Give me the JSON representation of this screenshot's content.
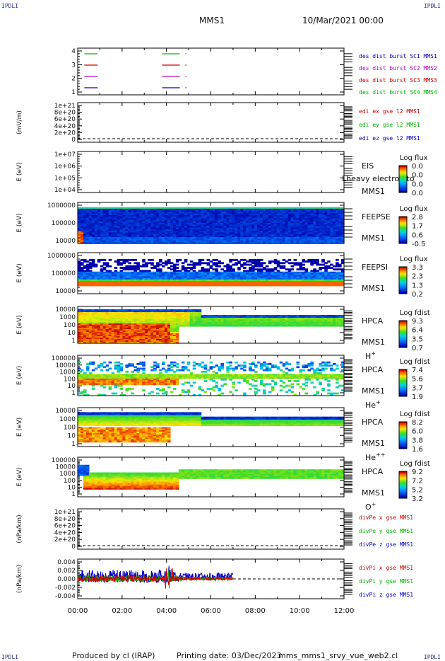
{
  "corners": {
    "tl": "IPDLI",
    "tr": "IPDLI",
    "bl": "IPDLI",
    "br": "IPDLI"
  },
  "header": {
    "mission": "MMS1",
    "datetime": "10/Mar/2021 00:00"
  },
  "footer": {
    "produced_by": "Produced by cl (IRAP)",
    "printing_date": "Printing date: 03/Dec/2023",
    "filename": "mms_mms1_srvy_vue_web2.cl"
  },
  "colors": {
    "mms1": "#0000c8",
    "mms2": "#c800c8",
    "mms3": "#c80000",
    "mms4": "#00b400",
    "x": "#d00000",
    "y": "#00b400",
    "z": "#0000c8"
  },
  "chart_data": {
    "type": "multi-panel time series / spectrogram",
    "x": {
      "range": [
        "00:00",
        "12:00"
      ],
      "ticks": [
        "00:00",
        "02:00",
        "04:00",
        "06:00",
        "08:00",
        "10:00",
        "12:00"
      ]
    },
    "panels": [
      {
        "id": "burst",
        "type": "line",
        "yticks": [
          "4",
          "3",
          "2",
          "1"
        ],
        "legend": [
          "des dist burst SC1 MMS1",
          "des dist burst SC2 MMS2",
          "des dist burst SC3 MMS3",
          "des dist burst SC4 MMS4"
        ],
        "intervals_hours": [
          [
            0.3,
            0.9
          ],
          [
            3.8,
            4.6
          ],
          [
            4.85,
            4.9
          ]
        ]
      },
      {
        "id": "edi",
        "type": "line",
        "ylabel": "(mV/m)",
        "yticks": [
          "1e+21",
          "8e+20",
          "6e+20",
          "4e+20",
          "2e+20",
          "0"
        ],
        "legend": [
          "edi ex gse l2 MMS1",
          "edi ey gse l2 MMS1",
          "edi ez gse l2 MMS1"
        ],
        "values": []
      },
      {
        "id": "eis",
        "type": "heatmap",
        "ylabel": "E (eV)",
        "yticks": [
          "1e+07",
          "1e+06",
          "1e+05",
          "1e+04"
        ],
        "labels": [
          "EIS",
          "MMS1"
        ],
        "overlay": "Lheavy electron to",
        "colorbar": {
          "title": "Log flux",
          "ticks": [
            "0.0",
            "0.0",
            "0.0",
            "0.0"
          ]
        }
      },
      {
        "id": "feepse",
        "type": "heatmap",
        "ylabel": "E (eV)",
        "yticks": [
          "1000000",
          "100000",
          "10000"
        ],
        "labels": [
          "FEEPSE",
          "MMS1"
        ],
        "colorbar": {
          "title": "Log flux",
          "ticks": [
            "2.8",
            "1.7",
            "0.6",
            "-0.5"
          ]
        }
      },
      {
        "id": "feepsi",
        "type": "heatmap",
        "ylabel": "E (eV)",
        "yticks": [
          "1000000",
          "100000",
          "10000"
        ],
        "labels": [
          "FEEPSI",
          "MMS1"
        ],
        "colorbar": {
          "title": "Log flux",
          "ticks": [
            "3.3",
            "2.3",
            "1.3",
            "0.2"
          ]
        }
      },
      {
        "id": "hpca_h",
        "type": "heatmap",
        "ylabel": "E (eV)",
        "yticks": [
          "10000",
          "1000",
          "100",
          "10",
          "1"
        ],
        "labels": [
          "HPCA",
          "MMS1"
        ],
        "species": "H",
        "charge": "+",
        "colorbar": {
          "title": "Log fdist",
          "ticks": [
            "9.3",
            "6.4",
            "3.5",
            "0.7"
          ]
        }
      },
      {
        "id": "hpca_he1",
        "type": "heatmap",
        "ylabel": "E (eV)",
        "yticks": [
          "100000",
          "10000",
          "1000",
          "100",
          "10",
          "1"
        ],
        "labels": [
          "HPCA",
          "MMS1"
        ],
        "species": "He",
        "charge": "+",
        "colorbar": {
          "title": "Log fdist",
          "ticks": [
            "7.4",
            "5.6",
            "3.7",
            "1.9"
          ]
        }
      },
      {
        "id": "hpca_he2",
        "type": "heatmap",
        "ylabel": "E (eV)",
        "yticks": [
          "10000",
          "1000",
          "100",
          "10",
          "1"
        ],
        "labels": [
          "HPCA",
          "MMS1"
        ],
        "species": "He",
        "charge": "++",
        "colorbar": {
          "title": "Log fdist",
          "ticks": [
            "8.2",
            "6.0",
            "3.8",
            "1.6"
          ]
        }
      },
      {
        "id": "hpca_o",
        "type": "heatmap",
        "ylabel": "E (eV)",
        "yticks": [
          "100000",
          "10000",
          "1000",
          "100",
          "10",
          "1"
        ],
        "labels": [
          "HPCA",
          "MMS1"
        ],
        "species": "O",
        "charge": "+",
        "colorbar": {
          "title": "Log fdist",
          "ticks": [
            "9.2",
            "7.2",
            "5.2",
            "3.2"
          ]
        }
      },
      {
        "id": "divpe",
        "type": "line",
        "ylabel": "(nPa/km)",
        "yticks": [
          "1e+21",
          "8e+20",
          "6e+20",
          "4e+20",
          "2e+20",
          "0"
        ],
        "legend": [
          "divPe x gse MMS1",
          "divPe y gse MMS1",
          "divPe z gse MMS1"
        ],
        "values": []
      },
      {
        "id": "divpi",
        "type": "line",
        "ylabel": "(nPa/km)",
        "yticks": [
          "0.004",
          "0.002",
          "0.000",
          "-0.002",
          "-0.004"
        ],
        "ylim": [
          -0.0048,
          0.0048
        ],
        "data_end": "07:00",
        "legend": [
          "divPi x gse MMS1",
          "divPi y gse MMS1",
          "divPi z gse MMS1"
        ]
      }
    ]
  }
}
